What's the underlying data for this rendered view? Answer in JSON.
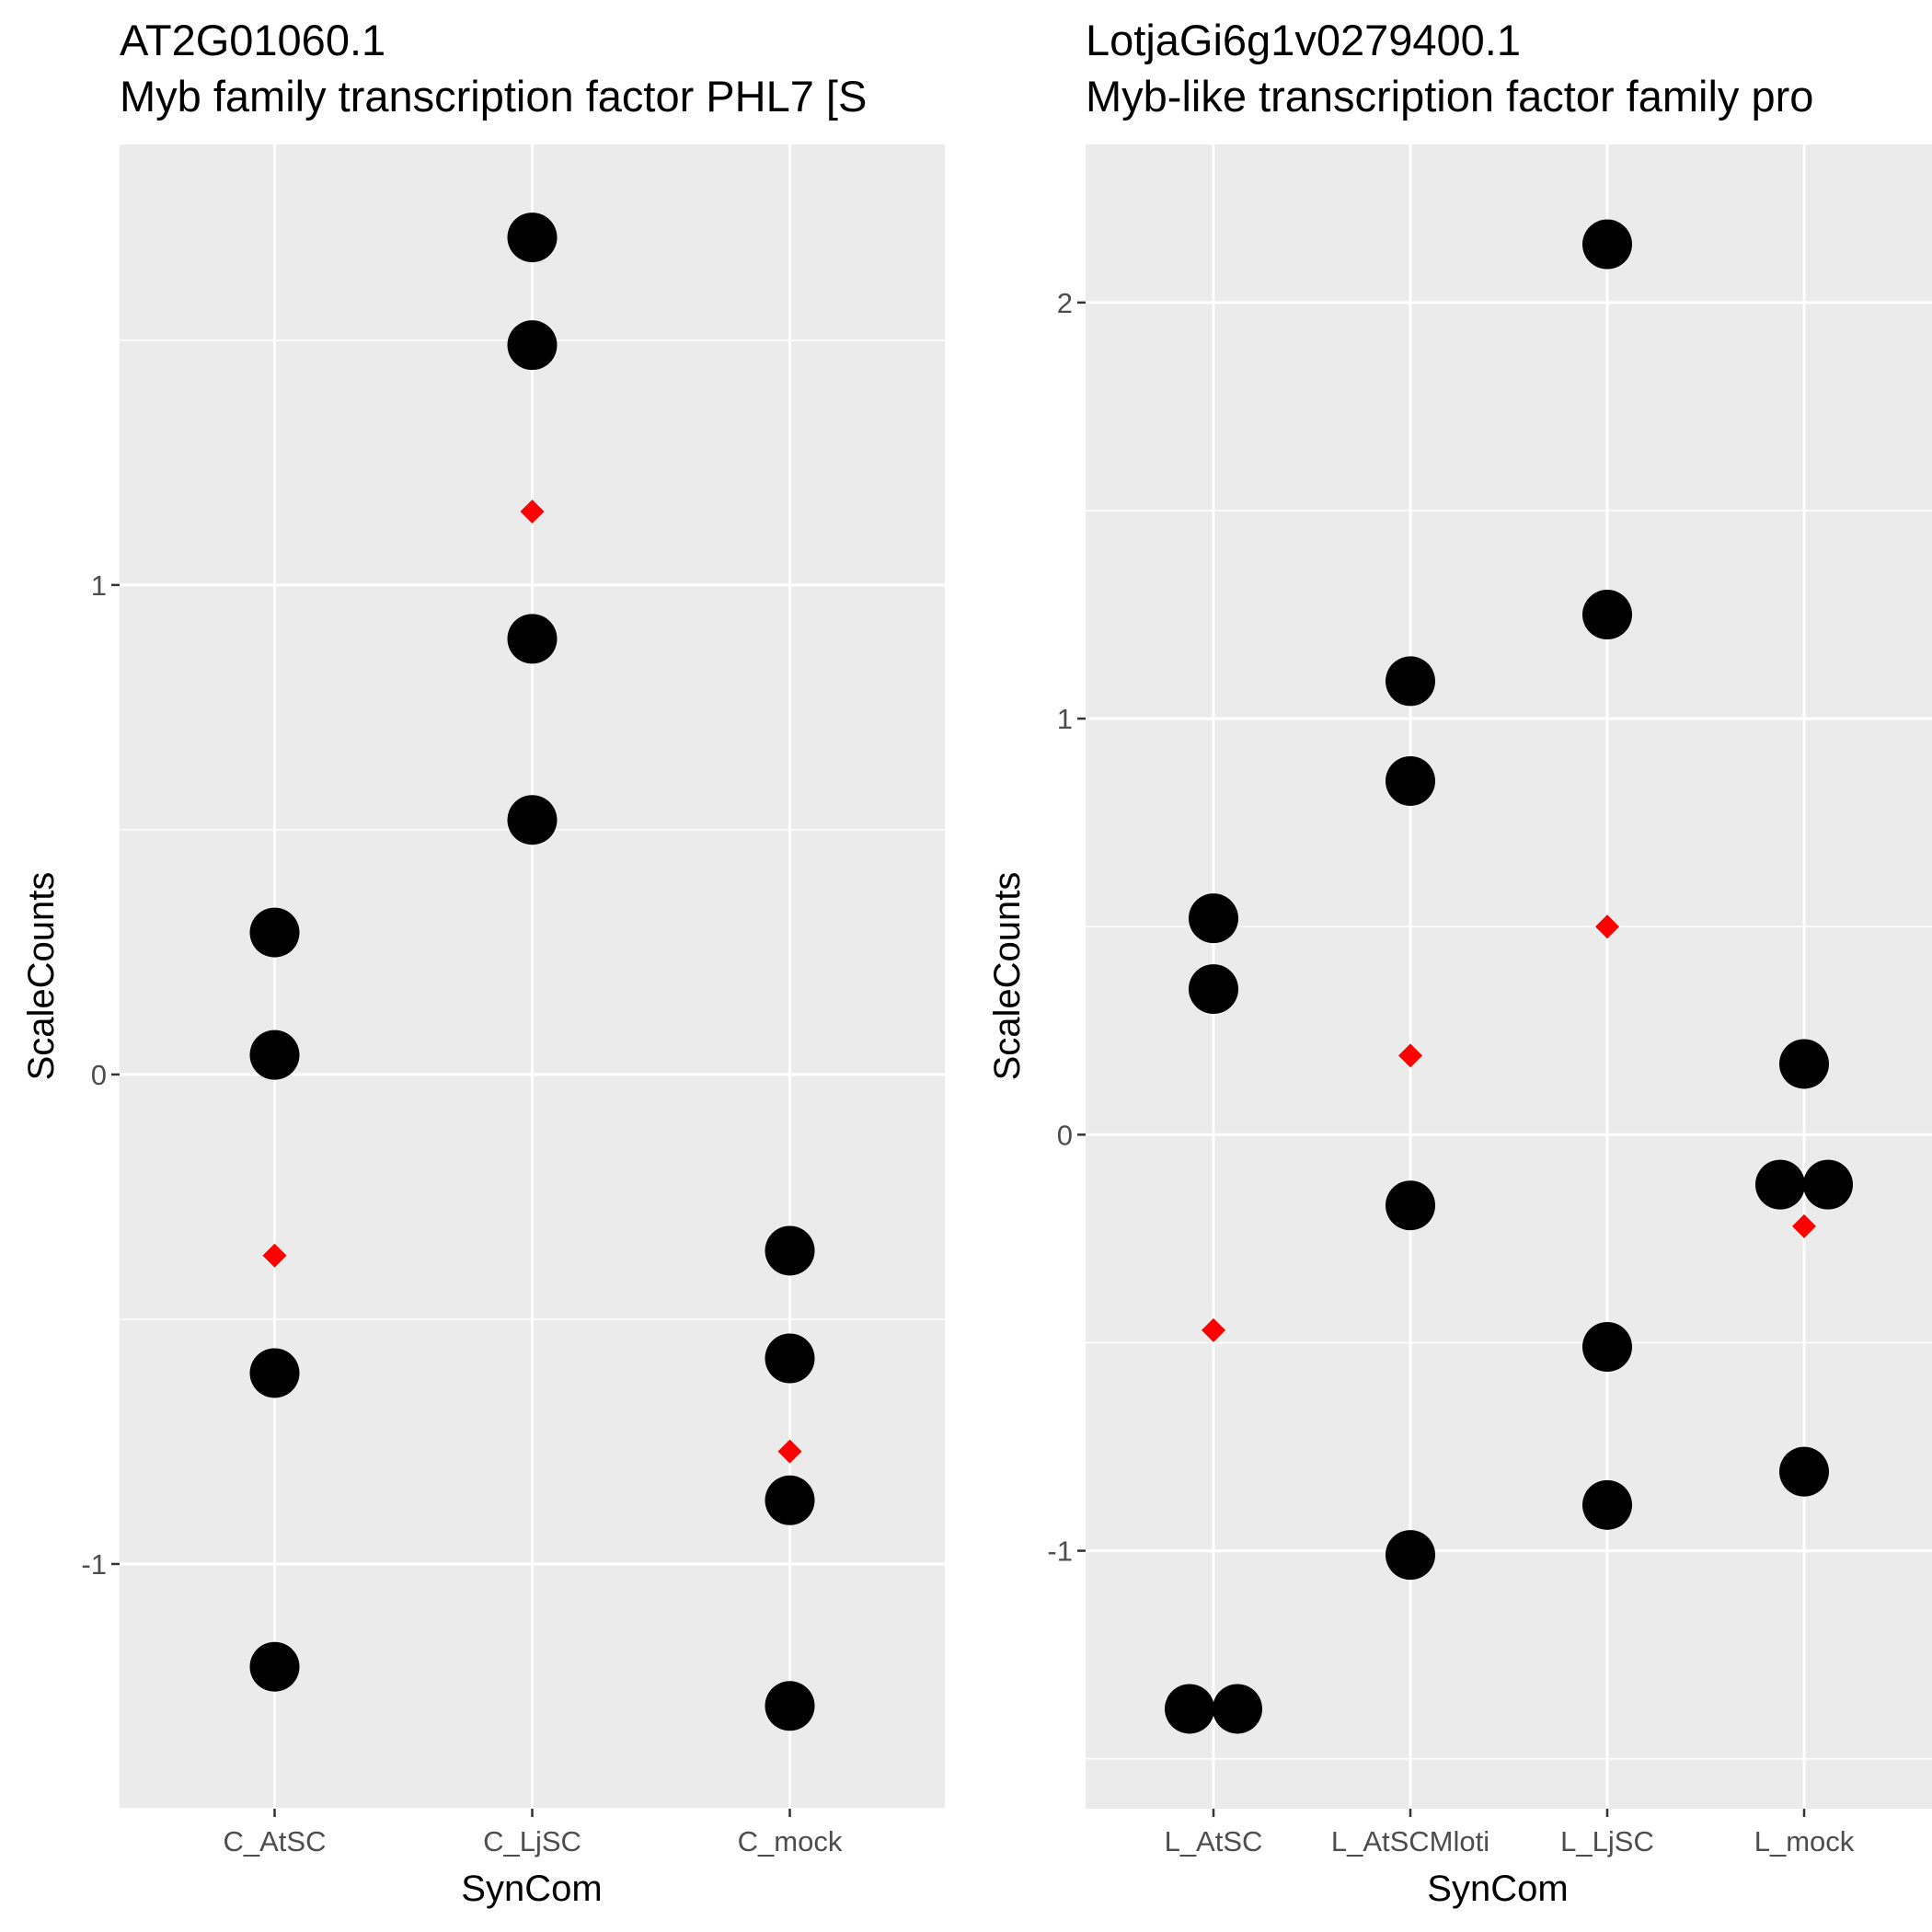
{
  "chart_data": [
    {
      "type": "scatter",
      "title": "AT2G01060.1",
      "subtitle": "Myb family transcription factor PHL7 [S",
      "xlabel": "SynCom",
      "ylabel": "ScaleCounts",
      "categories": [
        "C_AtSC",
        "C_LjSC",
        "C_mock"
      ],
      "ylim": [
        -1.5,
        1.9
      ],
      "yticks": [
        -1,
        0,
        1
      ],
      "ytick_labels": [
        "-1",
        "0",
        "1"
      ],
      "grid": true,
      "series": [
        {
          "color": "#000000",
          "points": [
            {
              "x": "C_AtSC",
              "y": 0.29
            },
            {
              "x": "C_AtSC",
              "y": 0.04
            },
            {
              "x": "C_AtSC",
              "y": -0.61
            },
            {
              "x": "C_AtSC",
              "y": -1.21
            },
            {
              "x": "C_LjSC",
              "y": 1.71
            },
            {
              "x": "C_LjSC",
              "y": 1.49
            },
            {
              "x": "C_LjSC",
              "y": 0.89
            },
            {
              "x": "C_LjSC",
              "y": 0.52
            },
            {
              "x": "C_mock",
              "y": -0.36
            },
            {
              "x": "C_mock",
              "y": -0.58
            },
            {
              "x": "C_mock",
              "y": -0.87
            },
            {
              "x": "C_mock",
              "y": -1.29
            }
          ]
        },
        {
          "color": "#ff0000",
          "marker": "diamond",
          "points": [
            {
              "x": "C_AtSC",
              "y": -0.37
            },
            {
              "x": "C_LjSC",
              "y": 1.15
            },
            {
              "x": "C_mock",
              "y": -0.77
            }
          ]
        }
      ]
    },
    {
      "type": "scatter",
      "title": "LotjaGi6g1v0279400.1",
      "subtitle": "Myb-like transcription factor family pro",
      "xlabel": "SynCom",
      "ylabel": "ScaleCounts",
      "categories": [
        "L_AtSC",
        "L_AtSCMloti",
        "L_LjSC",
        "L_mock"
      ],
      "ylim": [
        -1.62,
        2.38
      ],
      "yticks": [
        -1,
        0,
        1,
        2
      ],
      "ytick_labels": [
        "-1",
        "0",
        "1",
        "2"
      ],
      "grid": true,
      "series": [
        {
          "color": "#000000",
          "points": [
            {
              "x": "L_AtSC",
              "y": 0.52
            },
            {
              "x": "L_AtSC",
              "y": 0.35
            },
            {
              "x": "L_AtSC",
              "y": -1.38
            },
            {
              "x": "L_AtSC",
              "y": -1.38
            },
            {
              "x": "L_AtSCMloti",
              "y": 1.09
            },
            {
              "x": "L_AtSCMloti",
              "y": 0.85
            },
            {
              "x": "L_AtSCMloti",
              "y": -0.17
            },
            {
              "x": "L_AtSCMloti",
              "y": -1.01
            },
            {
              "x": "L_LjSC",
              "y": 2.14
            },
            {
              "x": "L_LjSC",
              "y": 1.25
            },
            {
              "x": "L_LjSC",
              "y": -0.51
            },
            {
              "x": "L_LjSC",
              "y": -0.89
            },
            {
              "x": "L_mock",
              "y": 0.17
            },
            {
              "x": "L_mock",
              "y": -0.12
            },
            {
              "x": "L_mock",
              "y": -0.12
            },
            {
              "x": "L_mock",
              "y": -0.81
            }
          ]
        },
        {
          "color": "#ff0000",
          "marker": "diamond",
          "points": [
            {
              "x": "L_AtSC",
              "y": -0.47
            },
            {
              "x": "L_AtSCMloti",
              "y": 0.19
            },
            {
              "x": "L_LjSC",
              "y": 0.5
            },
            {
              "x": "L_mock",
              "y": -0.22
            }
          ]
        }
      ]
    }
  ],
  "style": {
    "panel_background": "#ebebeb",
    "grid_color": "#ffffff",
    "point_color": "#000000",
    "mean_color": "#ff0000",
    "tick_color": "#4d4d4d"
  }
}
